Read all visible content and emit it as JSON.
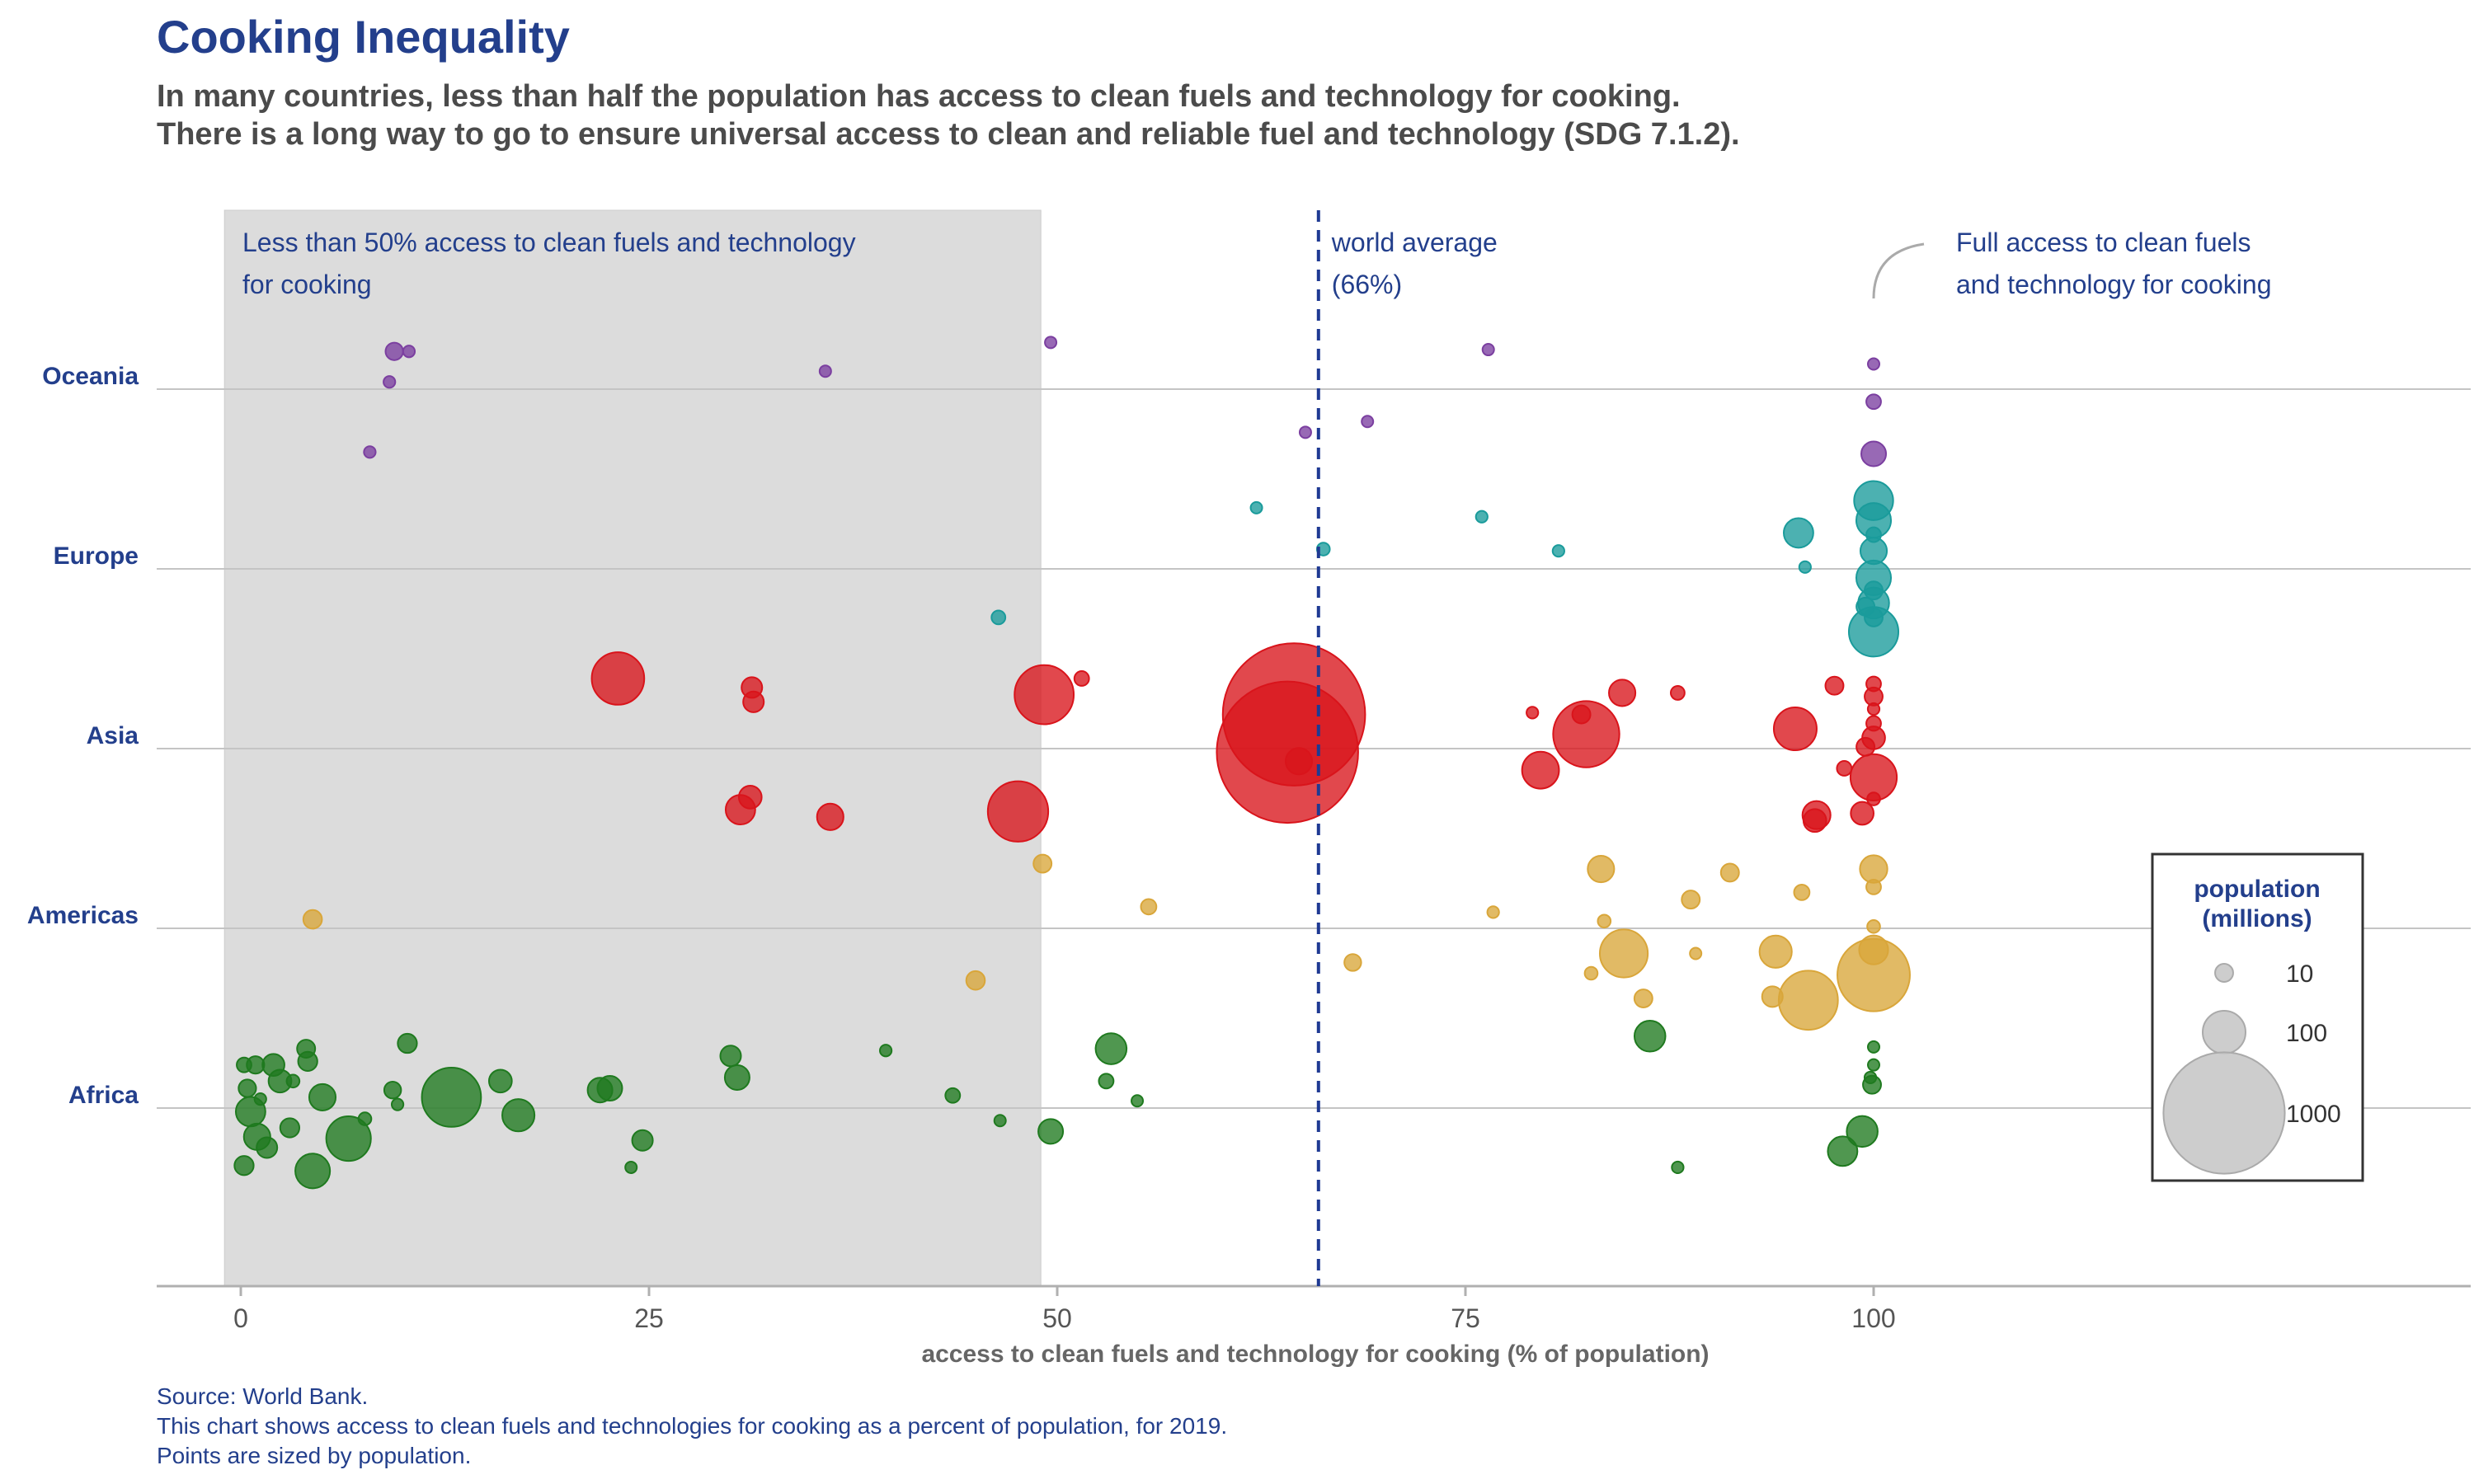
{
  "header": {
    "title": "Cooking Inequality",
    "subtitle_line1": "In many countries, less than half the population has access to clean fuels and technology for cooking.",
    "subtitle_line2": "There is a long way to go to ensure universal access to clean and reliable fuel and technology (SDG 7.1.2)."
  },
  "footer": {
    "line1": "Source: World Bank.",
    "line2": "This chart shows access to clean fuels and technologies for cooking as a percent of population, for 2019.",
    "line3": "Points are sized by population."
  },
  "chart_data": {
    "type": "scatter",
    "title": "Cooking Inequality",
    "xlabel": "access to clean fuels and technology for cooking (% of population)",
    "ylabel": "",
    "xlim": [
      -5,
      136
    ],
    "x_ticks": [
      0,
      25,
      50,
      75,
      100
    ],
    "categories": [
      "Oceania",
      "Europe",
      "Asia",
      "Americas",
      "Africa"
    ],
    "grid": "horizontal at each region",
    "colors": {
      "Oceania": "#7b3fa0",
      "Europe": "#1a9b9b",
      "Asia": "#d9141b",
      "Americas": "#d9a63a",
      "Africa": "#1f7a1f",
      "shade": "#dcdcdc",
      "text": "#233f8c"
    },
    "annotations": {
      "shaded_region_line1": "Less than 50% access to clean fuels and technology",
      "shaded_region_line2": "for cooking",
      "shaded_region_range": [
        -1,
        49
      ],
      "world_average_line1": "world average",
      "world_average_line2": "(66%)",
      "world_average_value": 66,
      "full_access_line1": "Full access to clean fuels",
      "full_access_line2": "and technology for cooking"
    },
    "legend": {
      "title_line1": "population",
      "title_line2": "(millions)",
      "placement": "right",
      "entries": [
        {
          "label": "10",
          "pop": 10
        },
        {
          "label": "100",
          "pop": 100
        },
        {
          "label": "1000",
          "pop": 1000
        }
      ]
    },
    "series": [
      {
        "region": "Oceania",
        "points": [
          {
            "x": 9.4,
            "y": 0.21,
            "pop": 9
          },
          {
            "x": 10.3,
            "y": 0.21,
            "pop": 2
          },
          {
            "x": 9.1,
            "y": 0.04,
            "pop": 2
          },
          {
            "x": 7.9,
            "y": -0.35,
            "pop": 2
          },
          {
            "x": 35.8,
            "y": 0.1,
            "pop": 1
          },
          {
            "x": 49.6,
            "y": 0.26,
            "pop": 1
          },
          {
            "x": 76.4,
            "y": 0.22,
            "pop": 1
          },
          {
            "x": 100,
            "y": 0.14,
            "pop": 1
          },
          {
            "x": 100,
            "y": -0.07,
            "pop": 5
          },
          {
            "x": 100,
            "y": -0.36,
            "pop": 25
          },
          {
            "x": 65.2,
            "y": -0.24,
            "pop": 1
          },
          {
            "x": 69,
            "y": -0.18,
            "pop": 1
          }
        ]
      },
      {
        "region": "Europe",
        "points": [
          {
            "x": 62.2,
            "y": 0.34,
            "pop": 1
          },
          {
            "x": 66.3,
            "y": 0.11,
            "pop": 3
          },
          {
            "x": 46.4,
            "y": -0.27,
            "pop": 4
          },
          {
            "x": 76,
            "y": 0.29,
            "pop": 2
          },
          {
            "x": 80.7,
            "y": 0.1,
            "pop": 2
          },
          {
            "x": 95.4,
            "y": 0.2,
            "pop": 40
          },
          {
            "x": 95.8,
            "y": 0.01,
            "pop": 2
          },
          {
            "x": 99.5,
            "y": -0.21,
            "pop": 10
          },
          {
            "x": 100,
            "y": 0.38,
            "pop": 80
          },
          {
            "x": 100,
            "y": 0.27,
            "pop": 60
          },
          {
            "x": 100,
            "y": 0.19,
            "pop": 5
          },
          {
            "x": 100,
            "y": 0.1,
            "pop": 30
          },
          {
            "x": 100,
            "y": -0.05,
            "pop": 60
          },
          {
            "x": 100,
            "y": -0.12,
            "pop": 10
          },
          {
            "x": 100,
            "y": -0.19,
            "pop": 45
          },
          {
            "x": 100,
            "y": -0.27,
            "pop": 10
          },
          {
            "x": 100,
            "y": -0.35,
            "pop": 140
          }
        ]
      },
      {
        "region": "Asia",
        "points": [
          {
            "x": 23.1,
            "y": 0.39,
            "pop": 160
          },
          {
            "x": 31.3,
            "y": 0.34,
            "pop": 15
          },
          {
            "x": 31.4,
            "y": 0.26,
            "pop": 15
          },
          {
            "x": 49.2,
            "y": 0.3,
            "pop": 210
          },
          {
            "x": 51.5,
            "y": 0.39,
            "pop": 5
          },
          {
            "x": 64.5,
            "y": 0.19,
            "pop": 1400
          },
          {
            "x": 64.1,
            "y": -0.02,
            "pop": 1380
          },
          {
            "x": 64.8,
            "y": -0.07,
            "pop": 30
          },
          {
            "x": 30.6,
            "y": -0.34,
            "pop": 40
          },
          {
            "x": 31.2,
            "y": -0.27,
            "pop": 20
          },
          {
            "x": 36.1,
            "y": -0.38,
            "pop": 30
          },
          {
            "x": 47.6,
            "y": -0.35,
            "pop": 220
          },
          {
            "x": 79.1,
            "y": 0.2,
            "pop": 2
          },
          {
            "x": 82.1,
            "y": 0.19,
            "pop": 10
          },
          {
            "x": 84.6,
            "y": 0.31,
            "pop": 30
          },
          {
            "x": 88,
            "y": 0.31,
            "pop": 4
          },
          {
            "x": 82.4,
            "y": 0.08,
            "pop": 270
          },
          {
            "x": 79.6,
            "y": -0.12,
            "pop": 70
          },
          {
            "x": 95.2,
            "y": 0.11,
            "pop": 100
          },
          {
            "x": 97.6,
            "y": 0.35,
            "pop": 10
          },
          {
            "x": 100,
            "y": 0.36,
            "pop": 5
          },
          {
            "x": 100,
            "y": 0.29,
            "pop": 10
          },
          {
            "x": 100,
            "y": 0.22,
            "pop": 2
          },
          {
            "x": 100,
            "y": 0.14,
            "pop": 5
          },
          {
            "x": 100,
            "y": 0.06,
            "pop": 20
          },
          {
            "x": 99.5,
            "y": 0.01,
            "pop": 10
          },
          {
            "x": 98.2,
            "y": -0.11,
            "pop": 5
          },
          {
            "x": 100,
            "y": -0.16,
            "pop": 120
          },
          {
            "x": 99.3,
            "y": -0.36,
            "pop": 20
          },
          {
            "x": 96.5,
            "y": -0.37,
            "pop": 35
          },
          {
            "x": 96.4,
            "y": -0.4,
            "pop": 20
          },
          {
            "x": 100,
            "y": -0.28,
            "pop": 3
          }
        ]
      },
      {
        "region": "Americas",
        "points": [
          {
            "x": 4.4,
            "y": 0.05,
            "pop": 11
          },
          {
            "x": 49.1,
            "y": 0.36,
            "pop": 10
          },
          {
            "x": 55.6,
            "y": 0.12,
            "pop": 6
          },
          {
            "x": 45,
            "y": -0.29,
            "pop": 11
          },
          {
            "x": 68.1,
            "y": -0.19,
            "pop": 8
          },
          {
            "x": 76.7,
            "y": 0.09,
            "pop": 2
          },
          {
            "x": 83.3,
            "y": 0.33,
            "pop": 30
          },
          {
            "x": 83.5,
            "y": 0.04,
            "pop": 3
          },
          {
            "x": 82.7,
            "y": -0.25,
            "pop": 3
          },
          {
            "x": 84.7,
            "y": -0.14,
            "pop": 130
          },
          {
            "x": 85.9,
            "y": -0.39,
            "pop": 10
          },
          {
            "x": 88.8,
            "y": 0.16,
            "pop": 10
          },
          {
            "x": 89.1,
            "y": -0.14,
            "pop": 1
          },
          {
            "x": 91.2,
            "y": 0.31,
            "pop": 10
          },
          {
            "x": 94,
            "y": -0.13,
            "pop": 50
          },
          {
            "x": 93.8,
            "y": -0.38,
            "pop": 15
          },
          {
            "x": 95.6,
            "y": 0.2,
            "pop": 6
          },
          {
            "x": 96,
            "y": -0.4,
            "pop": 210
          },
          {
            "x": 100,
            "y": 0.33,
            "pop": 33
          },
          {
            "x": 100,
            "y": 0.23,
            "pop": 5
          },
          {
            "x": 100,
            "y": 0.01,
            "pop": 3
          },
          {
            "x": 100,
            "y": -0.12,
            "pop": 38
          },
          {
            "x": 100,
            "y": -0.26,
            "pop": 330
          }
        ]
      },
      {
        "region": "Africa",
        "points": [
          {
            "x": 10.2,
            "y": 0.36,
            "pop": 12
          },
          {
            "x": 0.2,
            "y": 0.24,
            "pop": 5
          },
          {
            "x": 0.9,
            "y": 0.24,
            "pop": 9
          },
          {
            "x": 2,
            "y": 0.24,
            "pop": 18
          },
          {
            "x": 4,
            "y": 0.33,
            "pop": 10
          },
          {
            "x": 4.1,
            "y": 0.26,
            "pop": 12
          },
          {
            "x": 2.4,
            "y": 0.15,
            "pop": 20
          },
          {
            "x": 3.2,
            "y": 0.15,
            "pop": 3
          },
          {
            "x": 0.4,
            "y": 0.11,
            "pop": 9
          },
          {
            "x": 1.2,
            "y": 0.05,
            "pop": 2
          },
          {
            "x": 5,
            "y": 0.06,
            "pop": 30
          },
          {
            "x": 9.3,
            "y": 0.1,
            "pop": 8
          },
          {
            "x": 9.6,
            "y": 0.02,
            "pop": 2
          },
          {
            "x": 12.9,
            "y": 0.06,
            "pop": 210
          },
          {
            "x": 15.9,
            "y": 0.15,
            "pop": 20
          },
          {
            "x": 17,
            "y": -0.04,
            "pop": 50
          },
          {
            "x": 0.6,
            "y": -0.02,
            "pop": 40
          },
          {
            "x": 1,
            "y": -0.16,
            "pop": 30
          },
          {
            "x": 1.6,
            "y": -0.22,
            "pop": 15
          },
          {
            "x": 3,
            "y": -0.11,
            "pop": 12
          },
          {
            "x": 7.6,
            "y": -0.06,
            "pop": 3
          },
          {
            "x": 6.6,
            "y": -0.17,
            "pop": 110
          },
          {
            "x": 0.2,
            "y": -0.32,
            "pop": 12
          },
          {
            "x": 4.4,
            "y": -0.35,
            "pop": 60
          },
          {
            "x": 22,
            "y": 0.1,
            "pop": 25
          },
          {
            "x": 22.6,
            "y": 0.11,
            "pop": 25
          },
          {
            "x": 24.6,
            "y": -0.18,
            "pop": 15
          },
          {
            "x": 23.9,
            "y": -0.33,
            "pop": 1
          },
          {
            "x": 30,
            "y": 0.29,
            "pop": 15
          },
          {
            "x": 30.4,
            "y": 0.17,
            "pop": 25
          },
          {
            "x": 39.5,
            "y": 0.32,
            "pop": 2
          },
          {
            "x": 43.6,
            "y": 0.07,
            "pop": 5
          },
          {
            "x": 46.5,
            "y": -0.07,
            "pop": 1
          },
          {
            "x": 49.6,
            "y": -0.13,
            "pop": 25
          },
          {
            "x": 53.3,
            "y": 0.33,
            "pop": 45
          },
          {
            "x": 53,
            "y": 0.15,
            "pop": 5
          },
          {
            "x": 54.9,
            "y": 0.04,
            "pop": 1
          },
          {
            "x": 86.3,
            "y": 0.4,
            "pop": 45
          },
          {
            "x": 88,
            "y": -0.33,
            "pop": 2
          },
          {
            "x": 100,
            "y": 0.34,
            "pop": 1
          },
          {
            "x": 100,
            "y": 0.24,
            "pop": 1
          },
          {
            "x": 99.8,
            "y": 0.17,
            "pop": 2
          },
          {
            "x": 99.9,
            "y": 0.13,
            "pop": 10
          },
          {
            "x": 99.3,
            "y": -0.13,
            "pop": 45
          },
          {
            "x": 98.1,
            "y": -0.24,
            "pop": 40
          }
        ]
      }
    ]
  }
}
